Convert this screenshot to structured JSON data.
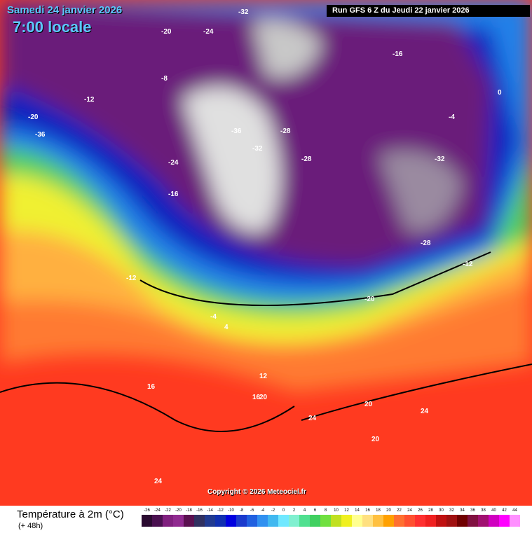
{
  "header": {
    "date": "Samedi 24 janvier 2026",
    "time": "7:00 locale",
    "run": "Run GFS 6 Z du Jeudi 22 janvier 2026"
  },
  "copyright": "Copyright © 2026 Meteociel.fr",
  "legend": {
    "title": "Température à 2m (°C)",
    "subtitle": "(+ 48h)",
    "values": [
      -26,
      -24,
      -22,
      -20,
      -18,
      -16,
      -14,
      -12,
      -10,
      -8,
      -6,
      -4,
      -2,
      0,
      2,
      4,
      6,
      8,
      10,
      12,
      14,
      16,
      18,
      20,
      22,
      24,
      26,
      28,
      30,
      32,
      34,
      36,
      38,
      40,
      42,
      44
    ],
    "colors": [
      "#2a0a30",
      "#4a1050",
      "#80207f",
      "#902a90",
      "#5a1050",
      "#303060",
      "#203a90",
      "#1030b0",
      "#0000e0",
      "#1a3acd",
      "#2060e0",
      "#3090f0",
      "#40b8f0",
      "#70e8ff",
      "#80f0d0",
      "#50e090",
      "#40d060",
      "#70e040",
      "#c0e020",
      "#f0f020",
      "#ffff90",
      "#ffe080",
      "#ffc040",
      "#ffa000",
      "#ff7030",
      "#ff5030",
      "#ff3030",
      "#f02020",
      "#c01010",
      "#a01010",
      "#700000",
      "#801040",
      "#a01070",
      "#d000c0",
      "#ff00ff",
      "#ff90ff"
    ]
  },
  "map_labels": [
    "-20",
    "-24",
    "-32",
    "-36",
    "-28",
    "-16",
    "-12",
    "-8",
    "-4",
    "0",
    "-20",
    "-28",
    "-32",
    "-24",
    "-16",
    "-12",
    "-4",
    "4",
    "12",
    "16",
    "20",
    "24",
    "24",
    "20",
    "16",
    "24",
    "20",
    "-12",
    "-20",
    "-28",
    "-32",
    "-36"
  ]
}
